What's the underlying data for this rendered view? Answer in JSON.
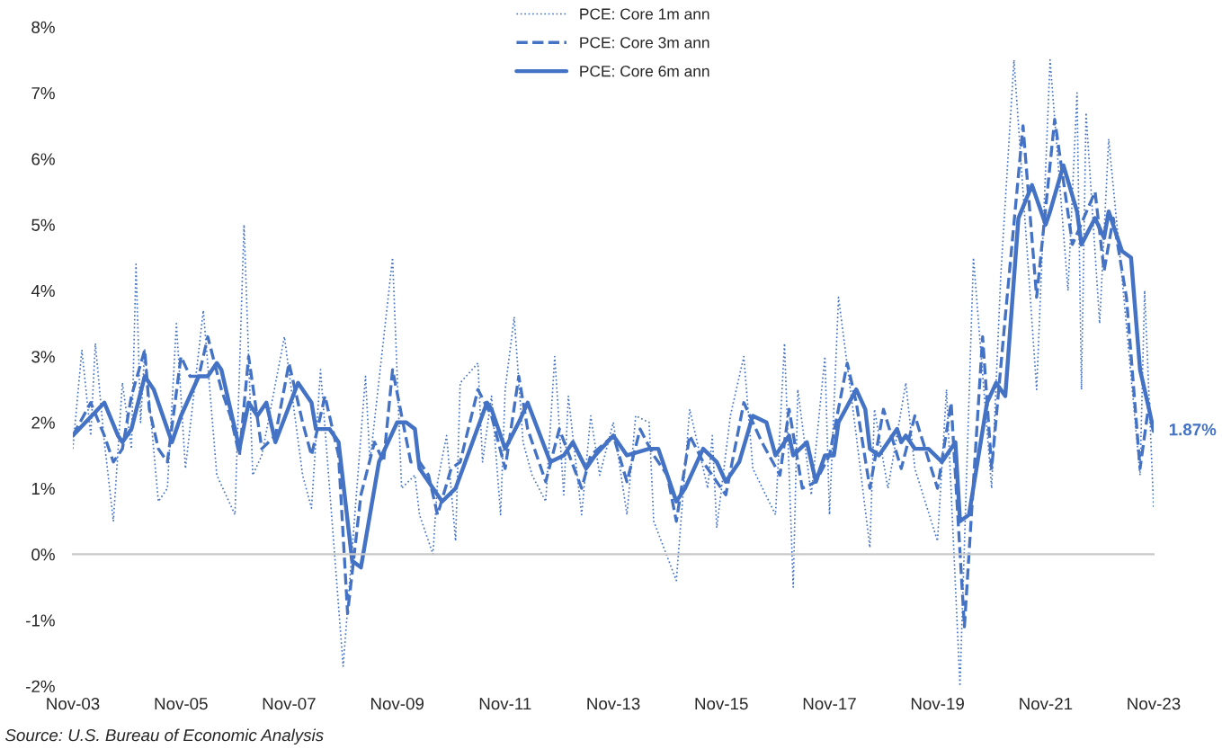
{
  "chart_data": {
    "type": "line",
    "xlim": [
      "2003-11",
      "2023-11"
    ],
    "xticks": [
      {
        "value": "2003-11",
        "label": "Nov-03"
      },
      {
        "value": "2005-11",
        "label": "Nov-05"
      },
      {
        "value": "2007-11",
        "label": "Nov-07"
      },
      {
        "value": "2009-11",
        "label": "Nov-09"
      },
      {
        "value": "2011-11",
        "label": "Nov-11"
      },
      {
        "value": "2013-11",
        "label": "Nov-13"
      },
      {
        "value": "2015-11",
        "label": "Nov-15"
      },
      {
        "value": "2017-11",
        "label": "Nov-17"
      },
      {
        "value": "2019-11",
        "label": "Nov-19"
      },
      {
        "value": "2021-11",
        "label": "Nov-21"
      },
      {
        "value": "2023-11",
        "label": "Nov-23"
      }
    ],
    "ylim": [
      -2,
      8
    ],
    "yticks": [
      {
        "value": -2,
        "label": "-2%"
      },
      {
        "value": -1,
        "label": "-1%"
      },
      {
        "value": 0,
        "label": "0%"
      },
      {
        "value": 1,
        "label": "1%"
      },
      {
        "value": 2,
        "label": "2%"
      },
      {
        "value": 3,
        "label": "3%"
      },
      {
        "value": 4,
        "label": "4%"
      },
      {
        "value": 5,
        "label": "5%"
      },
      {
        "value": 6,
        "label": "6%"
      },
      {
        "value": 7,
        "label": "7%"
      },
      {
        "value": 8,
        "label": "8%"
      }
    ],
    "legend": "top",
    "series": [
      {
        "name": "PCE: Core 1m ann",
        "color": "#4472c4",
        "line_style": "dotted",
        "x": [
          "2003-11",
          "2004-01",
          "2004-03",
          "2004-04",
          "2004-06",
          "2004-08",
          "2004-10",
          "2004-12",
          "2005-01",
          "2005-02",
          "2005-03",
          "2005-06",
          "2005-08",
          "2005-10",
          "2005-12",
          "2006-04",
          "2006-07",
          "2006-11",
          "2007-01",
          "2007-03",
          "2007-05",
          "2007-10",
          "2008-02",
          "2008-04",
          "2008-06",
          "2008-11",
          "2009-04",
          "2009-05",
          "2009-10",
          "2009-12",
          "2010-03",
          "2010-04",
          "2010-07",
          "2010-08",
          "2010-10",
          "2010-12",
          "2011-01",
          "2011-05",
          "2011-06",
          "2011-08",
          "2011-10",
          "2011-11",
          "2012-01",
          "2012-03",
          "2012-05",
          "2012-08",
          "2012-10",
          "2012-12",
          "2013-01",
          "2013-04",
          "2013-06",
          "2013-08",
          "2013-11",
          "2014-02",
          "2014-04",
          "2014-07",
          "2014-08",
          "2015-01",
          "2015-04",
          "2015-08",
          "2015-09",
          "2015-10",
          "2016-01",
          "2016-04",
          "2016-06",
          "2016-11",
          "2017-01",
          "2017-03",
          "2017-04",
          "2017-07",
          "2017-10",
          "2017-11",
          "2018-01",
          "2018-05",
          "2018-08",
          "2018-09",
          "2018-12",
          "2019-04",
          "2019-06",
          "2019-11",
          "2020-01",
          "2020-04",
          "2020-07",
          "2020-11",
          "2021-01",
          "2021-04",
          "2021-09",
          "2021-12",
          "2022-04",
          "2022-06",
          "2022-07",
          "2022-08",
          "2022-11",
          "2023-01",
          "2023-04",
          "2023-08",
          "2023-09",
          "2023-11"
        ],
        "values": [
          1.6,
          3.1,
          1.8,
          3.2,
          1.7,
          0.5,
          2.6,
          1.6,
          4.4,
          2.0,
          3.1,
          0.8,
          1.0,
          3.5,
          1.3,
          3.7,
          1.2,
          0.6,
          5.0,
          1.2,
          1.5,
          3.3,
          1.2,
          0.7,
          2.8,
          -1.7,
          2.7,
          1.4,
          4.5,
          1.0,
          1.2,
          0.6,
          0.0,
          1.1,
          1.8,
          0.2,
          2.6,
          2.9,
          1.4,
          2.4,
          0.6,
          2.5,
          3.6,
          1.7,
          1.2,
          0.8,
          3.0,
          0.9,
          2.4,
          0.6,
          2.1,
          1.2,
          2.0,
          0.6,
          2.1,
          2.0,
          0.5,
          -0.4,
          2.2,
          1.0,
          1.8,
          0.4,
          2.1,
          3.0,
          1.3,
          0.6,
          3.2,
          -0.5,
          2.5,
          0.9,
          3.0,
          0.6,
          3.9,
          1.8,
          0.1,
          2.2,
          1.0,
          2.6,
          1.3,
          0.2,
          2.5,
          -2.0,
          4.5,
          1.0,
          4.2,
          7.5,
          2.5,
          7.5,
          4.0,
          7.0,
          2.5,
          6.7,
          3.5,
          6.3,
          4.2,
          1.2,
          4.0,
          0.7
        ]
      },
      {
        "name": "PCE: Core 3m ann",
        "color": "#4472c4",
        "line_style": "dashed",
        "x": [
          "2003-11",
          "2004-03",
          "2004-06",
          "2004-08",
          "2004-10",
          "2004-12",
          "2005-03",
          "2005-04",
          "2005-06",
          "2005-08",
          "2005-11",
          "2006-01",
          "2006-03",
          "2006-05",
          "2006-08",
          "2006-10",
          "2006-12",
          "2007-02",
          "2007-05",
          "2007-08",
          "2007-11",
          "2008-02",
          "2008-04",
          "2008-07",
          "2008-10",
          "2008-12",
          "2009-03",
          "2009-06",
          "2009-08",
          "2009-10",
          "2010-02",
          "2010-04",
          "2010-06",
          "2010-08",
          "2010-11",
          "2011-01",
          "2011-05",
          "2011-08",
          "2011-11",
          "2012-02",
          "2012-04",
          "2012-08",
          "2012-11",
          "2013-04",
          "2013-06",
          "2013-11",
          "2014-02",
          "2014-05",
          "2014-08",
          "2014-11",
          "2015-01",
          "2015-04",
          "2015-07",
          "2015-12",
          "2016-04",
          "2016-08",
          "2016-12",
          "2017-02",
          "2017-05",
          "2017-08",
          "2017-11",
          "2018-03",
          "2018-05",
          "2018-08",
          "2018-11",
          "2019-03",
          "2019-06",
          "2019-11",
          "2020-02",
          "2020-05",
          "2020-09",
          "2020-11",
          "2021-02",
          "2021-06",
          "2021-09",
          "2022-01",
          "2022-05",
          "2022-10",
          "2022-12",
          "2023-02",
          "2023-05",
          "2023-08",
          "2023-10"
        ],
        "values": [
          1.8,
          2.3,
          1.8,
          1.4,
          1.6,
          2.4,
          3.1,
          2.2,
          1.6,
          1.4,
          3.0,
          2.7,
          2.7,
          3.3,
          2.5,
          2.1,
          1.5,
          3.0,
          1.6,
          1.8,
          2.9,
          2.0,
          1.5,
          2.4,
          1.5,
          -0.9,
          0.9,
          1.7,
          1.4,
          2.8,
          1.4,
          1.4,
          1.2,
          0.6,
          1.3,
          1.4,
          2.5,
          2.1,
          1.3,
          2.7,
          1.9,
          1.1,
          1.9,
          1.0,
          1.5,
          1.8,
          1.1,
          1.9,
          1.5,
          1.2,
          0.5,
          1.8,
          1.4,
          0.9,
          2.3,
          1.7,
          1.2,
          2.2,
          1.0,
          1.1,
          1.5,
          2.9,
          2.3,
          1.0,
          2.2,
          1.3,
          2.1,
          1.0,
          2.3,
          -1.1,
          3.3,
          1.3,
          3.6,
          6.5,
          3.9,
          6.6,
          4.7,
          5.5,
          4.3,
          5.1,
          3.9,
          1.3,
          2.3
        ]
      },
      {
        "name": "PCE: Core 6m ann",
        "color": "#4472c4",
        "line_style": "solid",
        "x": [
          "2003-11",
          "2004-06",
          "2004-09",
          "2004-10",
          "2004-12",
          "2005-03",
          "2005-05",
          "2005-09",
          "2005-11",
          "2006-03",
          "2006-05",
          "2006-07",
          "2006-08",
          "2006-12",
          "2007-02",
          "2007-04",
          "2007-06",
          "2007-08",
          "2008-01",
          "2008-04",
          "2008-05",
          "2008-08",
          "2008-10",
          "2009-01",
          "2009-03",
          "2009-07",
          "2009-11",
          "2010-01",
          "2010-03",
          "2010-04",
          "2010-07",
          "2010-09",
          "2010-12",
          "2011-07",
          "2011-08",
          "2011-11",
          "2012-02",
          "2012-04",
          "2012-09",
          "2012-12",
          "2013-02",
          "2013-05",
          "2013-07",
          "2013-11",
          "2014-02",
          "2014-07",
          "2014-09",
          "2015-01",
          "2015-03",
          "2015-07",
          "2015-10",
          "2015-12",
          "2016-03",
          "2016-06",
          "2016-09",
          "2016-11",
          "2017-02",
          "2017-03",
          "2017-06",
          "2017-08",
          "2017-10",
          "2017-12",
          "2018-01",
          "2018-05",
          "2018-07",
          "2018-08",
          "2018-10",
          "2019-02",
          "2019-03",
          "2019-04",
          "2019-06",
          "2019-09",
          "2019-12",
          "2020-03",
          "2020-04",
          "2020-06",
          "2020-10",
          "2020-12",
          "2021-02",
          "2021-05",
          "2021-08",
          "2021-11",
          "2021-12",
          "2022-03",
          "2022-06",
          "2022-07",
          "2022-10",
          "2022-12",
          "2023-01",
          "2023-04",
          "2023-06",
          "2023-08",
          "2023-10",
          "2023-11"
        ],
        "values": [
          1.8,
          2.3,
          1.8,
          1.7,
          1.9,
          2.7,
          2.5,
          1.7,
          2.1,
          2.7,
          2.7,
          2.9,
          2.8,
          1.6,
          2.3,
          2.1,
          2.3,
          1.7,
          2.6,
          2.3,
          1.9,
          1.9,
          1.7,
          -0.1,
          -0.2,
          1.4,
          2.0,
          2.0,
          1.9,
          1.3,
          1.0,
          0.8,
          1.0,
          2.3,
          2.2,
          1.6,
          2.0,
          2.3,
          1.4,
          1.5,
          1.7,
          1.3,
          1.5,
          1.8,
          1.5,
          1.6,
          1.6,
          0.8,
          1.0,
          1.6,
          1.4,
          1.1,
          1.4,
          2.1,
          2.0,
          1.5,
          1.8,
          1.5,
          1.7,
          1.1,
          1.5,
          1.5,
          2.0,
          2.5,
          2.2,
          1.6,
          1.5,
          1.9,
          1.7,
          1.8,
          1.6,
          1.6,
          1.4,
          1.7,
          0.5,
          0.6,
          2.3,
          2.6,
          2.4,
          5.1,
          5.6,
          5.0,
          5.2,
          5.9,
          5.2,
          4.7,
          5.1,
          4.8,
          5.2,
          4.6,
          4.5,
          2.8,
          2.2,
          1.87
        ]
      }
    ],
    "annotations": [
      {
        "text": "1.87%",
        "x": "2023-11",
        "y": 1.87
      },
      "Source: U.S. Bureau of Economic Analysis"
    ]
  }
}
